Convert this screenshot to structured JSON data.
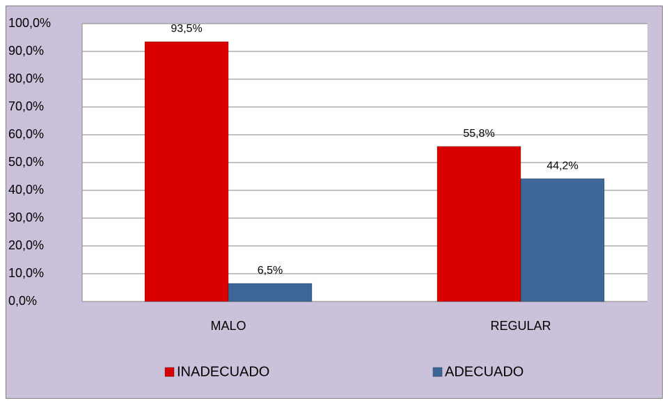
{
  "chart_data": {
    "type": "bar",
    "categories": [
      "MALO",
      "REGULAR"
    ],
    "series": [
      {
        "name": "INADECUADO",
        "color": "#d90000",
        "values": [
          93.5,
          55.8
        ],
        "value_labels": [
          "93,5%",
          "55,8%"
        ]
      },
      {
        "name": "ADECUADO",
        "color": "#3d6797",
        "values": [
          6.5,
          44.2
        ],
        "value_labels": [
          "6,5%",
          "44,2%"
        ]
      }
    ],
    "ylim": [
      0,
      100
    ],
    "yticks": [
      {
        "value": 0,
        "label": "0,0%"
      },
      {
        "value": 10,
        "label": "10,0%"
      },
      {
        "value": 20,
        "label": "20,0%"
      },
      {
        "value": 30,
        "label": "30,0%"
      },
      {
        "value": 40,
        "label": "40,0%"
      },
      {
        "value": 50,
        "label": "50,0%"
      },
      {
        "value": 60,
        "label": "60,0%"
      },
      {
        "value": 70,
        "label": "70,0%"
      },
      {
        "value": 80,
        "label": "80,0%"
      },
      {
        "value": 90,
        "label": "90,0%"
      },
      {
        "value": 100,
        "label": "100,0%"
      }
    ],
    "grid": true,
    "legend": "bottom"
  }
}
